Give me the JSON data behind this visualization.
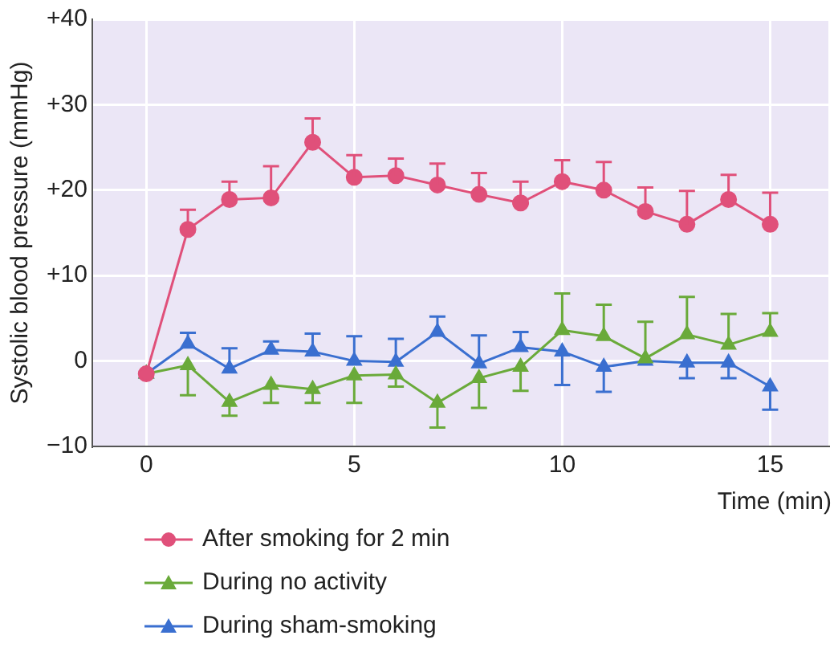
{
  "chart_data": {
    "type": "line",
    "xlabel": "Time (min)",
    "ylabel": "Systolic blood pressure (mmHg)",
    "x": [
      0,
      1,
      2,
      3,
      4,
      5,
      6,
      7,
      8,
      9,
      10,
      11,
      12,
      13,
      14,
      15
    ],
    "xlim": [
      -1.3,
      16.4
    ],
    "xticks": [
      0,
      5,
      10,
      15
    ],
    "ylim": [
      -10,
      40
    ],
    "yticks": [
      {
        "value": 40,
        "label": "+40"
      },
      {
        "value": 30,
        "label": "+30"
      },
      {
        "value": 20,
        "label": "+20"
      },
      {
        "value": 10,
        "label": "+10"
      },
      0,
      {
        "value": -10,
        "label": "−10"
      }
    ],
    "grid": true,
    "legend": "bottom left",
    "series": [
      {
        "name": "After smoking for 2 min",
        "color": "#e0507a",
        "marker": "circle",
        "values": [
          -1.5,
          15.4,
          18.9,
          19.1,
          25.6,
          21.5,
          21.7,
          20.6,
          19.5,
          18.5,
          21,
          20,
          17.5,
          16,
          18.9,
          16
        ],
        "errors": [
          null,
          [
            15.4,
            17.7
          ],
          [
            18.9,
            21
          ],
          [
            19.1,
            22.8
          ],
          [
            25.6,
            28.4
          ],
          [
            21.5,
            24.1
          ],
          [
            21.7,
            23.7
          ],
          [
            20.6,
            23.1
          ],
          [
            19.5,
            22
          ],
          [
            18.5,
            21
          ],
          [
            21,
            23.5
          ],
          [
            20,
            23.3
          ],
          [
            17.5,
            20.3
          ],
          [
            16,
            19.9
          ],
          [
            18.9,
            21.8
          ],
          [
            16,
            19.7
          ]
        ]
      },
      {
        "name": "During no activity",
        "color": "#6aaa3a",
        "marker": "triangle",
        "values": [
          -1.5,
          -0.5,
          -4.8,
          -2.8,
          -3.3,
          -1.7,
          -1.6,
          -4.9,
          -2,
          -0.7,
          3.6,
          2.9,
          0.3,
          3.1,
          1.9,
          3.4
        ],
        "errors": [
          null,
          [
            -4,
            -0.5
          ],
          [
            -6.4,
            -4.8
          ],
          [
            -4.9,
            -2.8
          ],
          [
            -4.9,
            -3.3
          ],
          [
            -4.9,
            -1.7
          ],
          [
            -3,
            -1.6
          ],
          [
            -7.8,
            -4.9
          ],
          [
            -5.5,
            -2
          ],
          [
            -3.5,
            -0.7
          ],
          [
            3.6,
            7.9
          ],
          [
            2.9,
            6.6
          ],
          [
            0.3,
            4.6
          ],
          [
            3.1,
            7.5
          ],
          [
            1.9,
            5.5
          ],
          [
            3.4,
            5.6
          ]
        ]
      },
      {
        "name": "During sham-smoking",
        "color": "#3a6fd0",
        "marker": "triangle",
        "values": [
          -1.5,
          2,
          -0.9,
          1.3,
          1.1,
          0,
          -0.1,
          3.4,
          -0.3,
          1.6,
          1.1,
          -0.7,
          0,
          -0.2,
          -0.2,
          -3
        ],
        "errors": [
          null,
          [
            2,
            3.3
          ],
          [
            -0.9,
            1.5
          ],
          [
            1.3,
            2.3
          ],
          [
            1.1,
            3.2
          ],
          [
            0,
            2.9
          ],
          [
            -0.1,
            2.6
          ],
          [
            3.4,
            5.2
          ],
          [
            -0.3,
            3
          ],
          [
            1.6,
            3.4
          ],
          [
            -2.8,
            1.1
          ],
          [
            -3.6,
            -0.7
          ],
          null,
          [
            -2,
            -0.2
          ],
          [
            -2,
            -0.2
          ],
          [
            -5.7,
            -3
          ]
        ]
      }
    ]
  }
}
